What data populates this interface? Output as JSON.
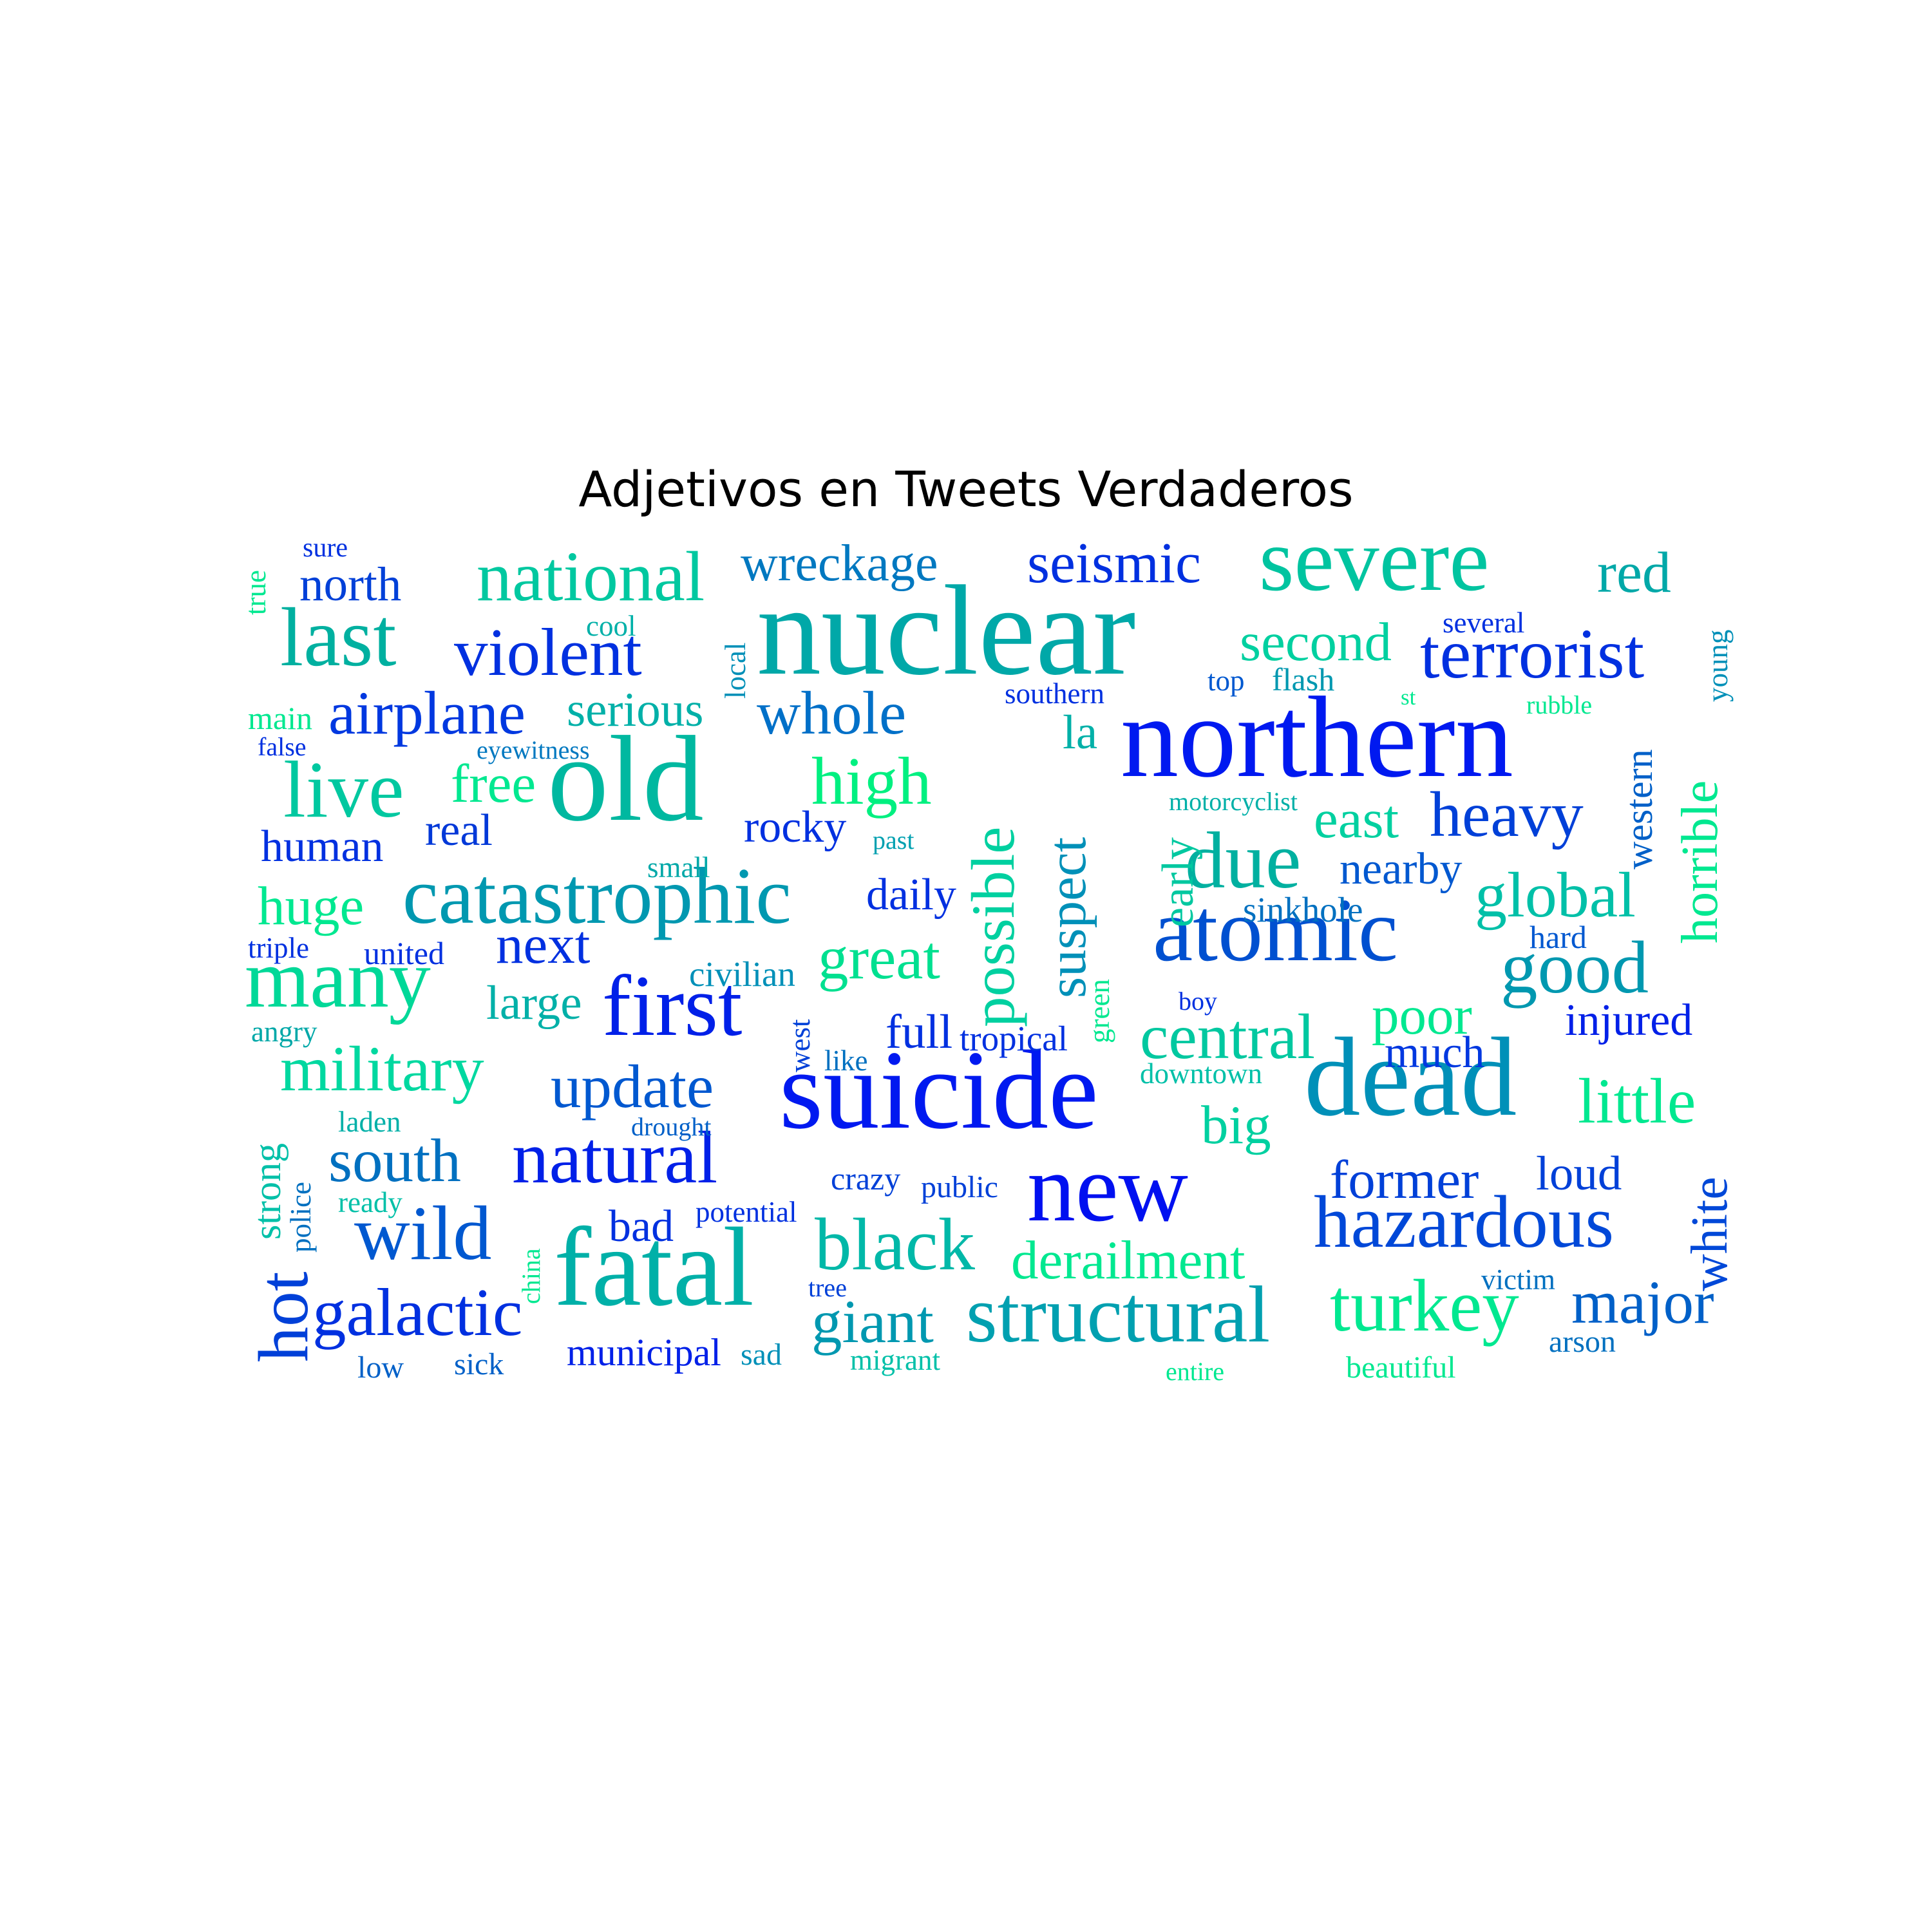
{
  "title": "Adjetivos en Tweets Verdaderos",
  "colors": {
    "blue": "#0019f0",
    "teal": "#009eb8",
    "green": "#00e68c"
  },
  "words": [
    {
      "text": "nuclear",
      "color": "#00a8a8"
    },
    {
      "text": "northern",
      "color": "#0019f0"
    },
    {
      "text": "suicide",
      "color": "#0019f0"
    },
    {
      "text": "severe",
      "color": "#00c4a0"
    },
    {
      "text": "dead",
      "color": "#0090b8"
    },
    {
      "text": "old",
      "color": "#00b8a0"
    },
    {
      "text": "fatal",
      "color": "#00b0a8"
    },
    {
      "text": "new",
      "color": "#0010f0"
    },
    {
      "text": "atomic",
      "color": "#0050d0"
    },
    {
      "text": "first",
      "color": "#0020e8"
    },
    {
      "text": "many",
      "color": "#00d898"
    },
    {
      "text": "catastrophic",
      "color": "#0098b0"
    },
    {
      "text": "structural",
      "color": "#00a0b0"
    },
    {
      "text": "terrorist",
      "color": "#0030e0"
    },
    {
      "text": "hazardous",
      "color": "#0048d8"
    },
    {
      "text": "national",
      "color": "#00c8a0"
    },
    {
      "text": "last",
      "color": "#00b0a0"
    },
    {
      "text": "violent",
      "color": "#0030e0"
    },
    {
      "text": "natural",
      "color": "#0020e8"
    },
    {
      "text": "wild",
      "color": "#0058d0"
    },
    {
      "text": "turkey",
      "color": "#00e890"
    },
    {
      "text": "black",
      "color": "#00b8a8"
    },
    {
      "text": "due",
      "color": "#00b0a0"
    },
    {
      "text": "possible",
      "color": "#00d0a0"
    },
    {
      "text": "suspect",
      "color": "#0090b8"
    },
    {
      "text": "heavy",
      "color": "#0040d8"
    },
    {
      "text": "live",
      "color": "#00c8a0"
    },
    {
      "text": "galactic",
      "color": "#0030e0"
    },
    {
      "text": "good",
      "color": "#0098b0"
    },
    {
      "text": "military",
      "color": "#00d8a0"
    },
    {
      "text": "high",
      "color": "#00f080"
    },
    {
      "text": "airplane",
      "color": "#0038e0"
    },
    {
      "text": "whole",
      "color": "#0070c8"
    },
    {
      "text": "seismic",
      "color": "#0030e0"
    },
    {
      "text": "wreckage",
      "color": "#0078c0"
    },
    {
      "text": "red",
      "color": "#00a8a8"
    },
    {
      "text": "second",
      "color": "#00d0a0"
    },
    {
      "text": "global",
      "color": "#00c0a8"
    },
    {
      "text": "great",
      "color": "#00e090"
    },
    {
      "text": "central",
      "color": "#00c8a0"
    },
    {
      "text": "little",
      "color": "#00e890"
    },
    {
      "text": "former",
      "color": "#0040d8"
    },
    {
      "text": "major",
      "color": "#0060c8"
    },
    {
      "text": "derailment",
      "color": "#00e890"
    },
    {
      "text": "giant",
      "color": "#0098b0"
    },
    {
      "text": "south",
      "color": "#0070c0"
    },
    {
      "text": "update",
      "color": "#0058d0"
    },
    {
      "text": "hot",
      "color": "#0040d8"
    },
    {
      "text": "white",
      "color": "#0048d8"
    },
    {
      "text": "horrible",
      "color": "#00e890"
    },
    {
      "text": "huge",
      "color": "#00e890"
    },
    {
      "text": "next",
      "color": "#0030e0"
    },
    {
      "text": "serious",
      "color": "#00b0a8"
    },
    {
      "text": "free",
      "color": "#00e890"
    },
    {
      "text": "east",
      "color": "#00d0a0"
    },
    {
      "text": "poor",
      "color": "#00e890"
    },
    {
      "text": "big",
      "color": "#00d0a0"
    },
    {
      "text": "la",
      "color": "#00b0a8"
    },
    {
      "text": "early",
      "color": "#00c8a0"
    },
    {
      "text": "western",
      "color": "#0060c8"
    },
    {
      "text": "north",
      "color": "#0040d8"
    },
    {
      "text": "rocky",
      "color": "#0030e0"
    },
    {
      "text": "human",
      "color": "#0030e0"
    },
    {
      "text": "real",
      "color": "#0038d8"
    },
    {
      "text": "large",
      "color": "#00b0a8"
    },
    {
      "text": "daily",
      "color": "#0030e0"
    },
    {
      "text": "nearby",
      "color": "#0058d0"
    },
    {
      "text": "injured",
      "color": "#0020e8"
    },
    {
      "text": "much",
      "color": "#0038e0"
    },
    {
      "text": "full",
      "color": "#0030e0"
    },
    {
      "text": "loud",
      "color": "#0040d8"
    },
    {
      "text": "bad",
      "color": "#0030e0"
    },
    {
      "text": "strong",
      "color": "#00c0a8"
    },
    {
      "text": "municipal",
      "color": "#0020e8"
    },
    {
      "text": "civilian",
      "color": "#0090b8"
    },
    {
      "text": "tropical",
      "color": "#0030e0"
    },
    {
      "text": "sinkhole",
      "color": "#0070c0"
    },
    {
      "text": "downtown",
      "color": "#00c0a8"
    },
    {
      "text": "local",
      "color": "#0090b8"
    },
    {
      "text": "young",
      "color": "#0090b8"
    },
    {
      "text": "true",
      "color": "#00e890"
    },
    {
      "text": "sure",
      "color": "#0030e0"
    },
    {
      "text": "main",
      "color": "#00e890"
    },
    {
      "text": "false",
      "color": "#0030e0"
    },
    {
      "text": "eyewitness",
      "color": "#0078c0"
    },
    {
      "text": "cool",
      "color": "#00b0a8"
    },
    {
      "text": "top",
      "color": "#0058d0"
    },
    {
      "text": "flash",
      "color": "#0098b0"
    },
    {
      "text": "several",
      "color": "#0030e0"
    },
    {
      "text": "southern",
      "color": "#0030e0"
    },
    {
      "text": "st",
      "color": "#00e890"
    },
    {
      "text": "rubble",
      "color": "#00e890"
    },
    {
      "text": "motorcyclist",
      "color": "#00b0a8"
    },
    {
      "text": "past",
      "color": "#00a0b0"
    },
    {
      "text": "small",
      "color": "#00a8a8"
    },
    {
      "text": "triple",
      "color": "#0030e0"
    },
    {
      "text": "united",
      "color": "#0030e0"
    },
    {
      "text": "hard",
      "color": "#0058d0"
    },
    {
      "text": "boy",
      "color": "#0030e0"
    },
    {
      "text": "green",
      "color": "#00e890"
    },
    {
      "text": "angry",
      "color": "#00a8a8"
    },
    {
      "text": "west",
      "color": "#0040d8"
    },
    {
      "text": "like",
      "color": "#0070c0"
    },
    {
      "text": "laden",
      "color": "#00b0a8"
    },
    {
      "text": "drought",
      "color": "#0060c8"
    },
    {
      "text": "police",
      "color": "#0070c0"
    },
    {
      "text": "ready",
      "color": "#00c0a8"
    },
    {
      "text": "crazy",
      "color": "#0040d8"
    },
    {
      "text": "public",
      "color": "#0040d8"
    },
    {
      "text": "potential",
      "color": "#0030e0"
    },
    {
      "text": "china",
      "color": "#00e890"
    },
    {
      "text": "tree",
      "color": "#0040d8"
    },
    {
      "text": "victim",
      "color": "#0070c0"
    },
    {
      "text": "arson",
      "color": "#0070c0"
    },
    {
      "text": "low",
      "color": "#0060c8"
    },
    {
      "text": "sick",
      "color": "#0060c8"
    },
    {
      "text": "sad",
      "color": "#0090b8"
    },
    {
      "text": "migrant",
      "color": "#00c0a8"
    },
    {
      "text": "entire",
      "color": "#00e890"
    },
    {
      "text": "beautiful",
      "color": "#00e890"
    }
  ]
}
